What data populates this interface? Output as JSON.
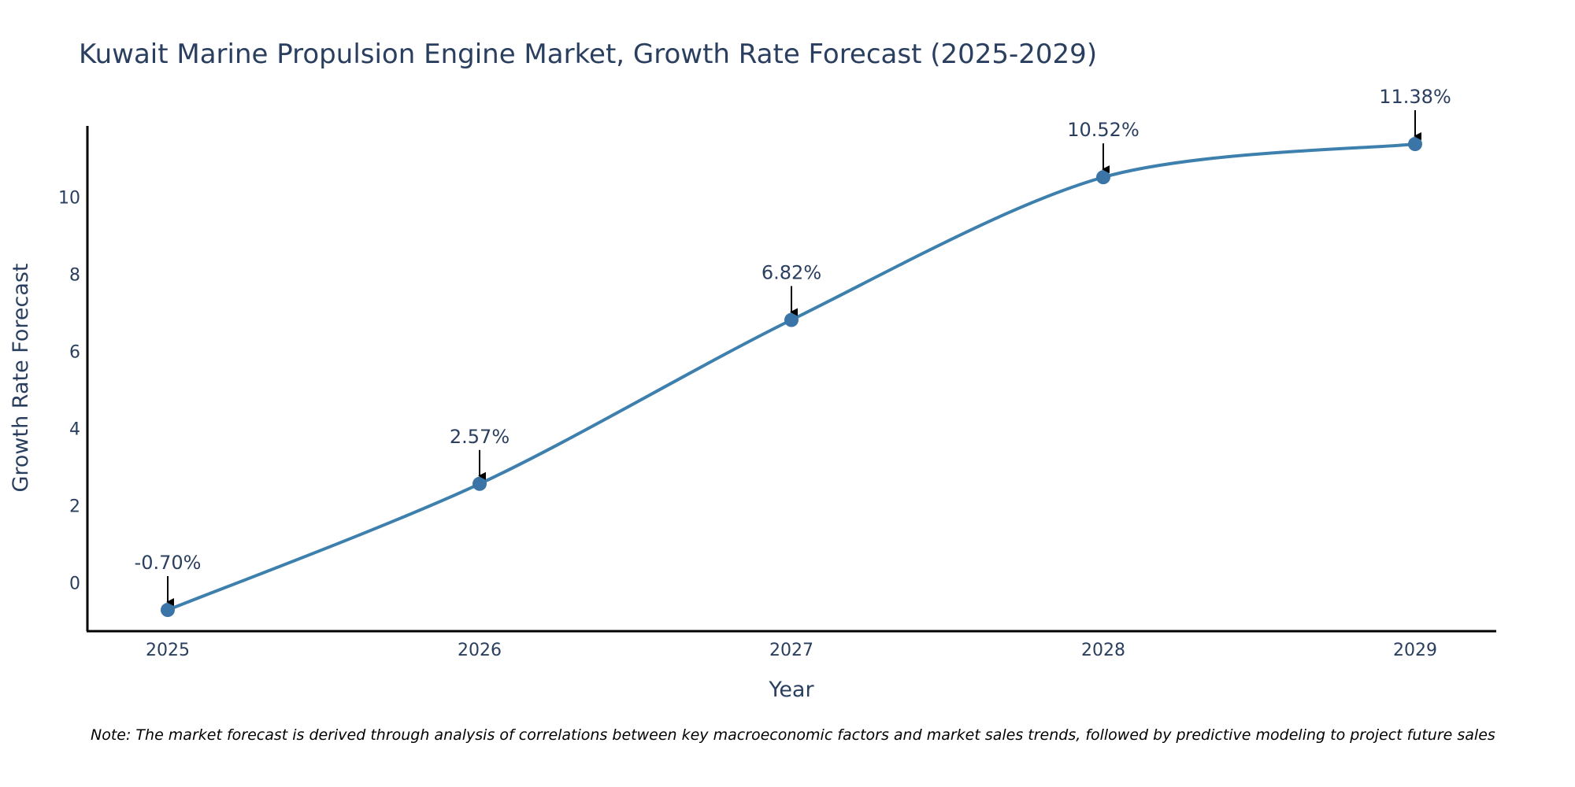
{
  "chart_data": {
    "type": "line",
    "title": "Kuwait Marine Propulsion Engine Market, Growth Rate Forecast (2025-2029)",
    "xlabel": "Year",
    "ylabel": "Growth Rate Forecast",
    "x": [
      "2025",
      "2026",
      "2027",
      "2028",
      "2029"
    ],
    "series": [
      {
        "values": [
          -0.7,
          2.57,
          6.82,
          10.52,
          11.38
        ],
        "labels": [
          "-0.70%",
          "2.57%",
          "6.82%",
          "10.52%",
          "11.38%"
        ],
        "color": "#3d7fad",
        "marker_color": "#3b74a6"
      }
    ],
    "yticks": [
      0,
      2,
      4,
      6,
      8,
      10
    ],
    "ylim": [
      -1.25,
      11.85
    ],
    "grid": false,
    "legend": "none",
    "note": "Note: The market forecast is derived through analysis of correlations between key macroeconomic factors and market sales trends, followed by predictive modeling to project future sales"
  }
}
